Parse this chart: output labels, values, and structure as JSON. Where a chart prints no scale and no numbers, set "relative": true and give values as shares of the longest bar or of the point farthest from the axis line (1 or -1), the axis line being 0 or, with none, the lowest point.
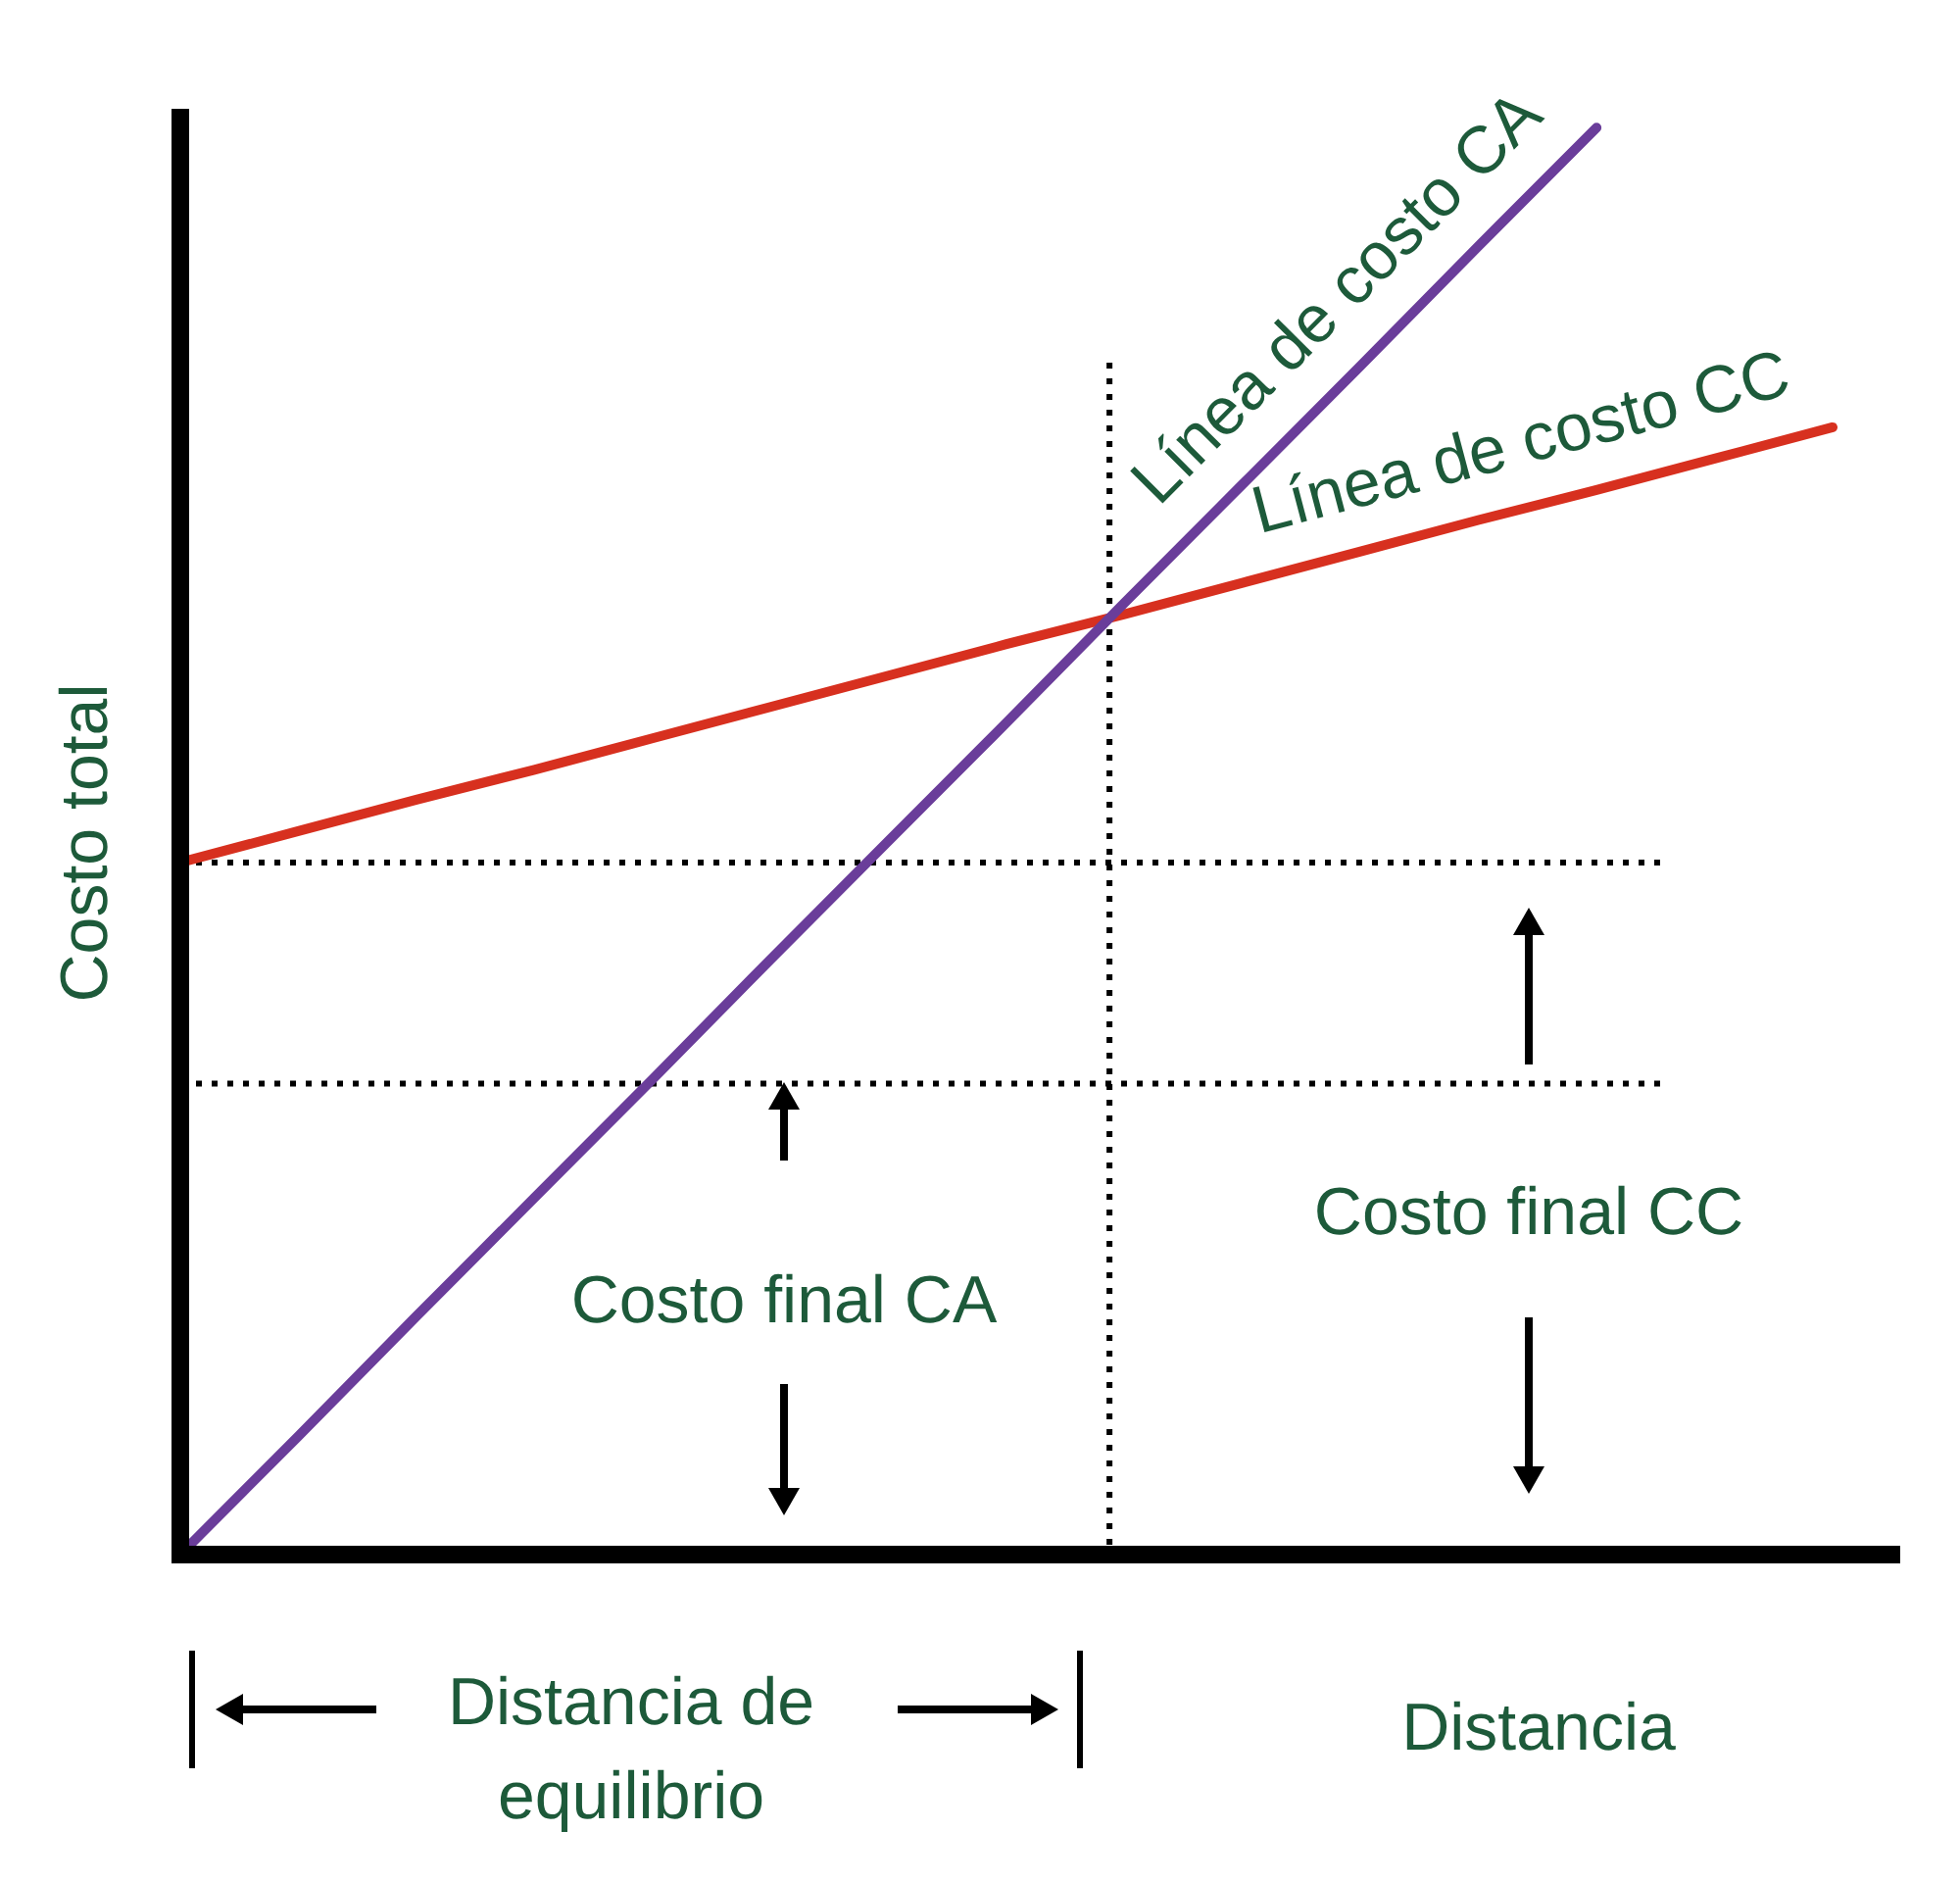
{
  "chart_data": {
    "type": "line",
    "relative": true,
    "xlabel": "Distancia",
    "ylabel": "Costo total",
    "categories": [
      null,
      null,
      null,
      null,
      null,
      null,
      null,
      null,
      null,
      null,
      null,
      null,
      null,
      null,
      null
    ],
    "grid": false,
    "legend": false,
    "marker": "none",
    "series": [
      {
        "name": "Línea de costo CA",
        "color": "#6a3d9a",
        "values": [
          0,
          0.083,
          0.167,
          0.25,
          0.333,
          0.417,
          0.5,
          0.583,
          0.667,
          0.75,
          0.833,
          0.917,
          1,
          null,
          null
        ]
      },
      {
        "name": "Línea de costo CC",
        "color": "#d7301f",
        "values": [
          0.485,
          0.507,
          0.529,
          0.55,
          0.572,
          0.594,
          0.616,
          0.638,
          0.659,
          0.681,
          0.703,
          0.725,
          0.746,
          0.768,
          0.79
        ]
      }
    ],
    "ref_lines": [
      {
        "axis": "y",
        "value": 0.485,
        "label": null,
        "line_style": "dotted",
        "color": "#000000"
      },
      {
        "axis": "y",
        "value": 0.33,
        "label": null,
        "line_style": "dotted",
        "color": "#000000"
      }
    ],
    "annotations": [
      "Costo final CA",
      "Costo final CC",
      "Distancia de equilibrio"
    ]
  }
}
